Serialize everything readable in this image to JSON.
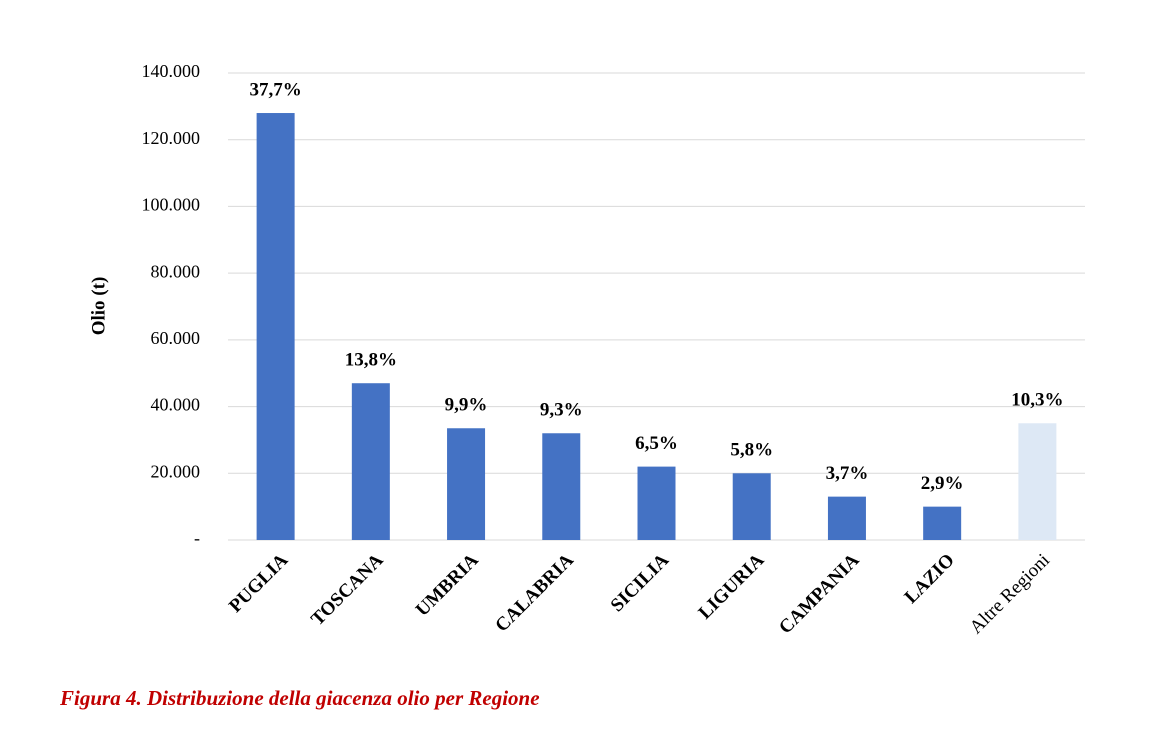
{
  "chart_data": {
    "type": "bar",
    "ylabel": "Olio (t)",
    "caption": "Figura 4. Distribuzione della giacenza olio per Regione",
    "categories": [
      "PUGLIA",
      "TOSCANA",
      "UMBRIA",
      "CALABRIA",
      "SICILIA",
      "LIGURIA",
      "CAMPANIA",
      "LAZIO",
      "Altre Regioni"
    ],
    "values": [
      128000,
      47000,
      33500,
      32000,
      22000,
      20000,
      13000,
      10000,
      35000
    ],
    "colors": [
      "#4472c4",
      "#4472c4",
      "#4472c4",
      "#4472c4",
      "#4472c4",
      "#4472c4",
      "#4472c4",
      "#4472c4",
      "#dde8f5"
    ],
    "shares": {
      "values": [
        37.7,
        13.8,
        9.9,
        9.3,
        6.5,
        5.8,
        3.7,
        2.9,
        10.3
      ],
      "value_labels": [
        "37,7%",
        "13,8%",
        "9,9%",
        "9,3%",
        "6,5%",
        "5,8%",
        "3,7%",
        "2,9%",
        "10,3%"
      ]
    },
    "ylim": [
      0,
      140000
    ],
    "yticks": [
      {
        "value": 0,
        "label": "-"
      },
      {
        "value": 20000,
        "label": "20.000"
      },
      {
        "value": 40000,
        "label": "40.000"
      },
      {
        "value": 60000,
        "label": "60.000"
      },
      {
        "value": 80000,
        "label": "80.000"
      },
      {
        "value": 100000,
        "label": "100.000"
      },
      {
        "value": 120000,
        "label": "120.000"
      },
      {
        "value": 140000,
        "label": "140.000"
      }
    ],
    "grid": true
  }
}
